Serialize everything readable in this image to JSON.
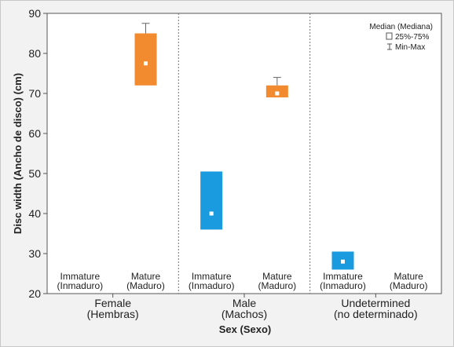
{
  "chart_data": {
    "type": "boxplot",
    "title": "",
    "xlabel": "Sex (Sexo)",
    "ylabel": "Disc width (Ancho de disco) (cm)",
    "ylim": [
      20,
      90
    ],
    "yticks": [
      20,
      30,
      40,
      50,
      60,
      70,
      80,
      90
    ],
    "grid": false,
    "legend_position": "top-right",
    "legend": {
      "median": "Median (Mediana)",
      "box": "25%-75%",
      "whisker": "Min-Max"
    },
    "groups": [
      {
        "label": "Female",
        "label2": "(Hembras)",
        "categories": [
          {
            "label": "Immature",
            "label2": "(Inmaduro)",
            "box": null
          },
          {
            "label": "Mature",
            "label2": "(Maduro)",
            "color": "#f28a30",
            "box": {
              "q1": 72,
              "q3": 85,
              "median": 77.5,
              "min": 72,
              "max": 87.5
            }
          }
        ]
      },
      {
        "label": "Male",
        "label2": "(Machos)",
        "categories": [
          {
            "label": "Immature",
            "label2": "(Inmaduro)",
            "color": "#1a9be0",
            "box": {
              "q1": 36,
              "q3": 50.5,
              "median": 40,
              "min": 36,
              "max": 50.5
            }
          },
          {
            "label": "Mature",
            "label2": "(Maduro)",
            "color": "#f28a30",
            "box": {
              "q1": 69,
              "q3": 72,
              "median": 70,
              "min": 69,
              "max": 74
            }
          }
        ]
      },
      {
        "label": "Undetermined",
        "label2": "(no determinado)",
        "categories": [
          {
            "label": "Immature",
            "label2": "(Inmaduro)",
            "color": "#1a9be0",
            "box": {
              "q1": 26,
              "q3": 30.5,
              "median": 28,
              "min": 26,
              "max": 30.5
            }
          },
          {
            "label": "Mature",
            "label2": "(Maduro)",
            "box": null
          }
        ]
      }
    ]
  }
}
